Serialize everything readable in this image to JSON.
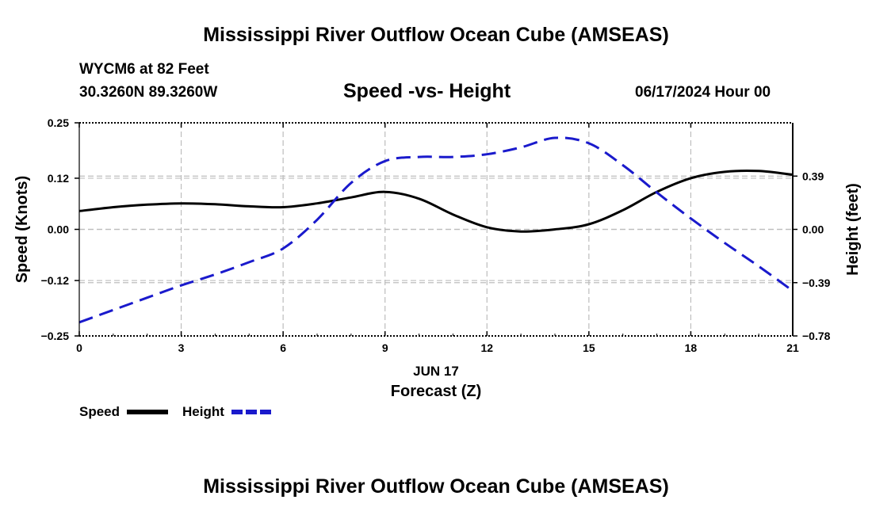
{
  "page": {
    "title": "Mississippi River Outflow Ocean Cube (AMSEAS)",
    "footer_title": "Mississippi River Outflow Ocean Cube (AMSEAS)"
  },
  "header": {
    "station": "WYCM6 at 82 Feet",
    "coords": "30.3260N  89.3260W",
    "subtitle": "Speed -vs- Height",
    "datetime": "06/17/2024 Hour 00"
  },
  "chart_data": {
    "type": "line",
    "title": "Speed -vs- Height",
    "xlabel": "Forecast (Z)",
    "xlabel_date": "JUN 17",
    "ylabel": "Speed (Knots)",
    "ylabel_right": "Height (feet)",
    "xlim": [
      0,
      21
    ],
    "ylim": [
      -0.25,
      0.25
    ],
    "ylim_right": [
      -0.78,
      0.78
    ],
    "x_ticks": [
      0,
      3,
      6,
      9,
      12,
      15,
      18,
      21
    ],
    "x_tick_labels": [
      "0",
      "3",
      "6",
      "9",
      "12",
      "15",
      "18",
      "21"
    ],
    "y_ticks": [
      -0.25,
      -0.12,
      0.0,
      0.12,
      0.25
    ],
    "y_tick_labels": [
      "−0.25",
      "−0.12",
      "0.00",
      "0.12",
      "0.25"
    ],
    "y_right_ticks": [
      -0.78,
      -0.39,
      0.0,
      0.39
    ],
    "y_right_tick_labels": [
      "−0.78",
      "−0.39",
      "0.00",
      "0.39"
    ],
    "grid": true,
    "series": [
      {
        "name": "Speed",
        "axis": "left",
        "color": "#000000",
        "style": "solid",
        "x": [
          0,
          1,
          2,
          3,
          4,
          5,
          6,
          7,
          8,
          9,
          10,
          11,
          12,
          13,
          14,
          15,
          16,
          17,
          18,
          19,
          20,
          21
        ],
        "values": [
          0.043,
          0.052,
          0.058,
          0.061,
          0.059,
          0.054,
          0.052,
          0.061,
          0.075,
          0.088,
          0.072,
          0.035,
          0.005,
          -0.005,
          0.0,
          0.012,
          0.045,
          0.088,
          0.12,
          0.135,
          0.137,
          0.128
        ]
      },
      {
        "name": "Height",
        "axis": "right",
        "color": "#1a1acc",
        "style": "dashed",
        "x": [
          0,
          1,
          2,
          3,
          4,
          5,
          6,
          7,
          8,
          9,
          10,
          11,
          12,
          13,
          14,
          15,
          16,
          17,
          18,
          19,
          20,
          21
        ],
        "values": [
          -0.68,
          -0.59,
          -0.5,
          -0.41,
          -0.33,
          -0.24,
          -0.14,
          0.07,
          0.34,
          0.5,
          0.53,
          0.53,
          0.55,
          0.6,
          0.67,
          0.63,
          0.47,
          0.27,
          0.08,
          -0.1,
          -0.27,
          -0.45
        ]
      }
    ],
    "legend": [
      {
        "label": "Speed",
        "color": "#000000",
        "style": "solid"
      },
      {
        "label": "Height",
        "color": "#1a1acc",
        "style": "dashed"
      }
    ],
    "legend_position": "bottom-left"
  }
}
